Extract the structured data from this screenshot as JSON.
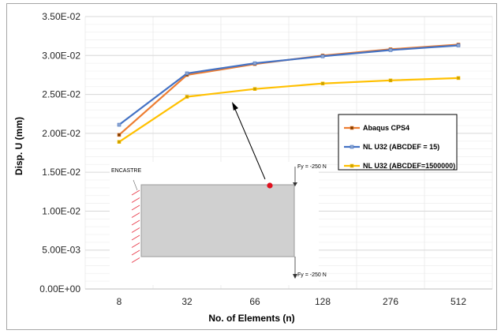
{
  "chart_data": {
    "type": "line",
    "categories": [
      "8",
      "32",
      "66",
      "128",
      "276",
      "512"
    ],
    "xlabel": "No. of Elements (n)",
    "ylabel": "Disp. U (mm)",
    "ylim": [
      0,
      0.035
    ],
    "yticks": [
      0,
      0.005,
      0.01,
      0.015,
      0.02,
      0.025,
      0.03,
      0.035
    ],
    "yticklabels": [
      "0.00E+00",
      "5.00E-03",
      "1.00E-02",
      "1.50E-02",
      "2.00E-02",
      "2.50E-02",
      "3.00E-02",
      "3.50E-02"
    ],
    "grid": true,
    "legend_position": "right",
    "series": [
      {
        "name": "Abaqus CPS4",
        "color": "#ed7d31",
        "marker_color": "#7f3f00",
        "values": [
          0.0198,
          0.0275,
          0.0289,
          0.03,
          0.0308,
          0.0314
        ]
      },
      {
        "name": "NL U32 (ABCDEF = 15)",
        "color": "#4472c4",
        "marker_color": "#8fa7d0",
        "values": [
          0.0211,
          0.0277,
          0.029,
          0.0299,
          0.0307,
          0.0313
        ]
      },
      {
        "name": "NL U32 (ABCDEF=1500000)",
        "color": "#ffc000",
        "marker_color": "#c8a000",
        "values": [
          0.0189,
          0.0247,
          0.0257,
          0.0264,
          0.0268,
          0.0271
        ]
      }
    ],
    "inset": {
      "support_label": "ENCASTRE",
      "load_top_label": "Fy = -250 N",
      "load_bottom_label": "Fy = -250 N",
      "marker_color": "#e0101e",
      "plate_color": "#d0d0d0"
    }
  }
}
